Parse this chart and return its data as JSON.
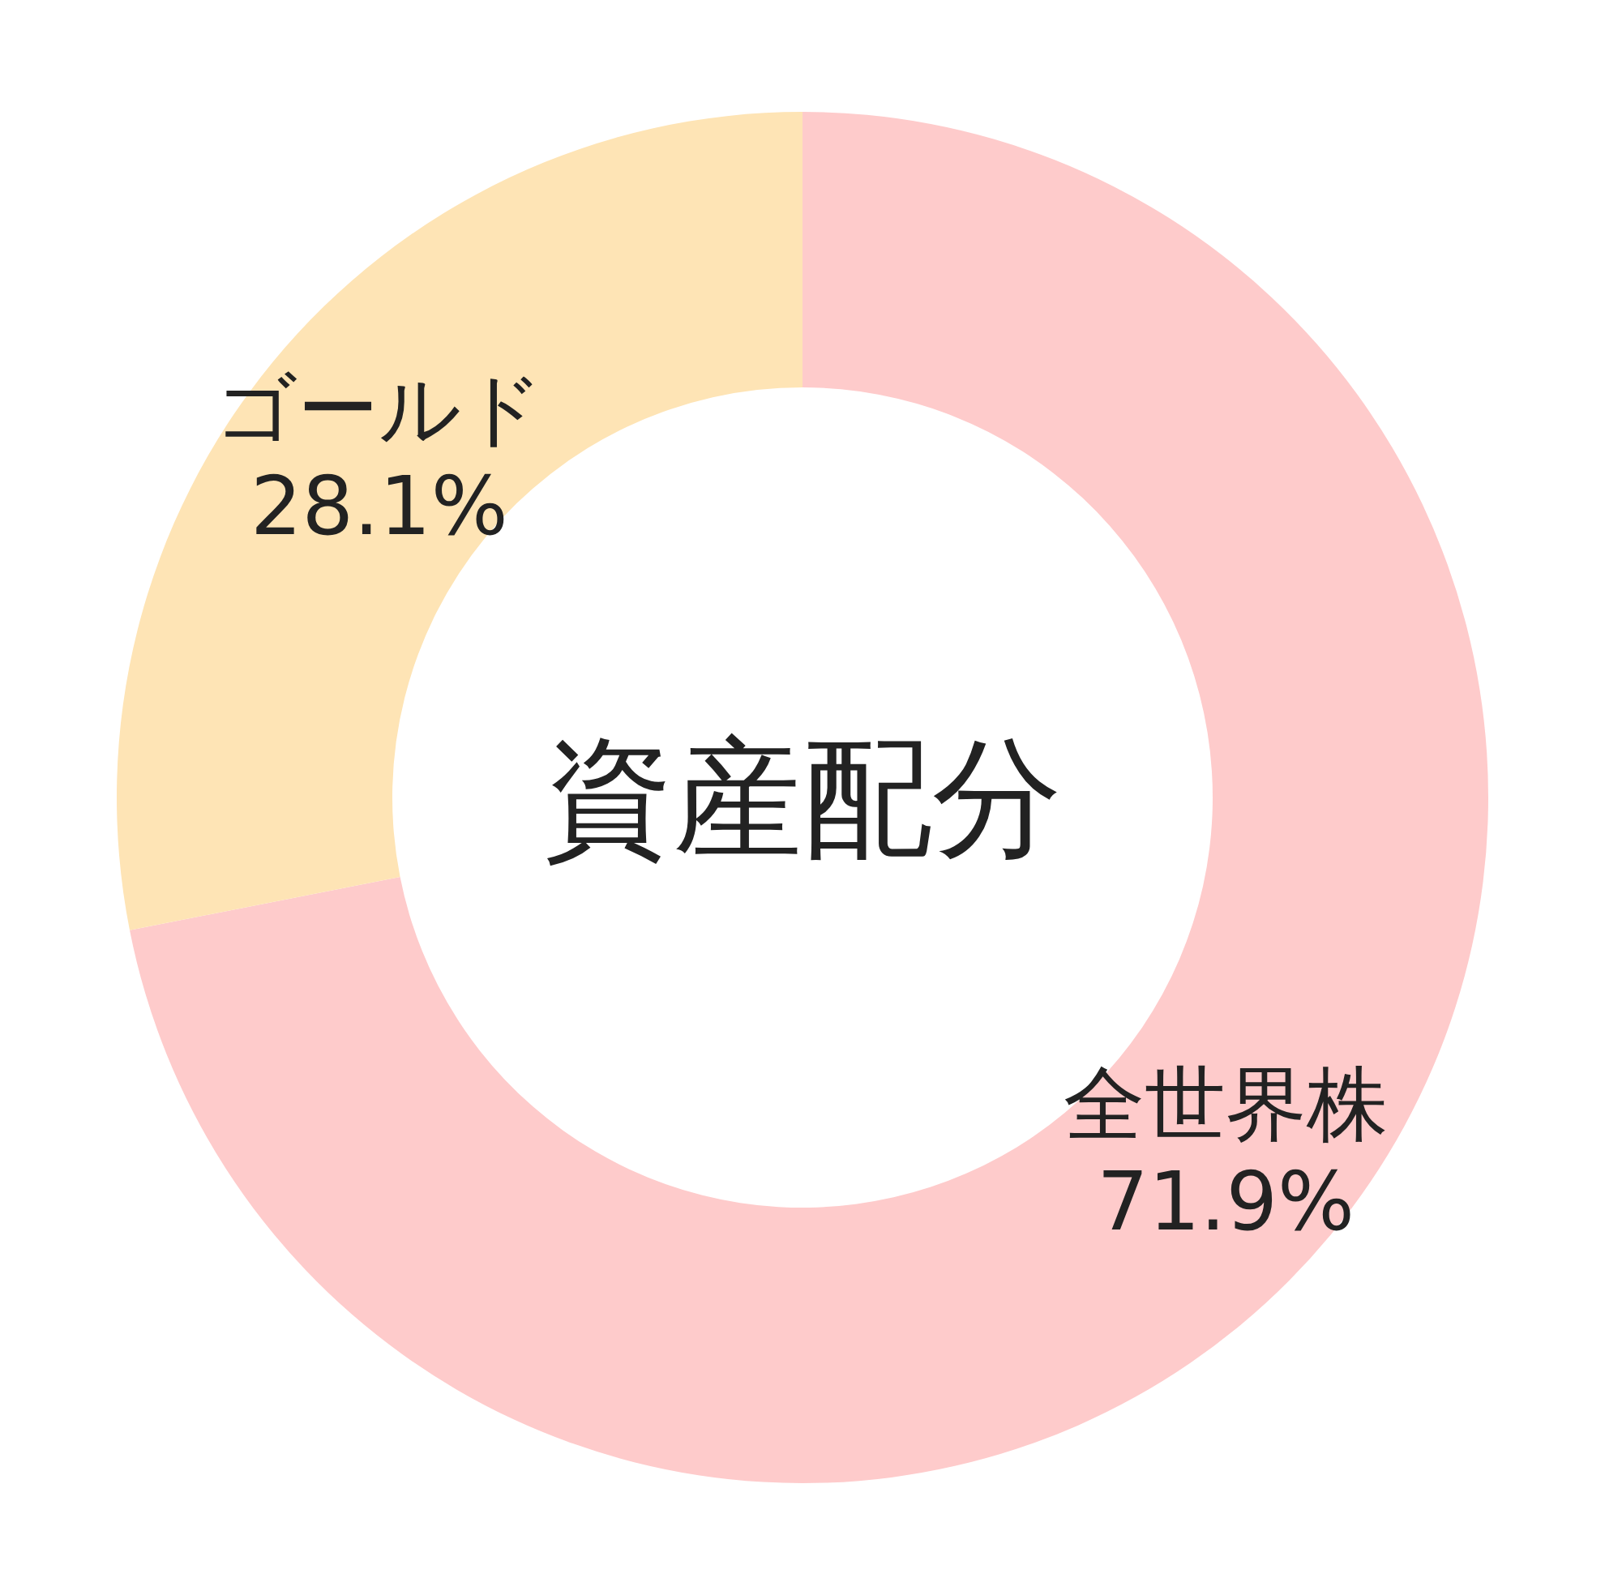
{
  "chart_data": {
    "type": "donut",
    "title": "資産配分",
    "categories": [
      "全世界株",
      "ゴールド"
    ],
    "values": [
      71.9,
      28.1
    ],
    "colors": [
      "#fecbcb",
      "#fee4b5"
    ],
    "value_labels": [
      "71.9%",
      "28.1%"
    ]
  }
}
